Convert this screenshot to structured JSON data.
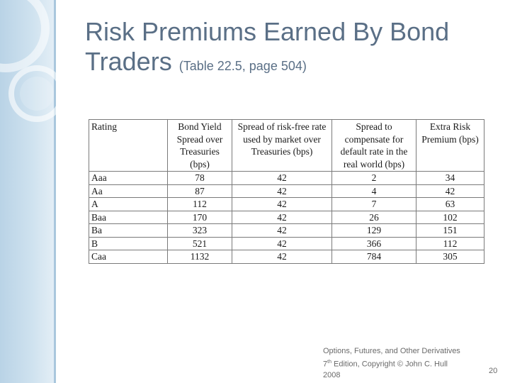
{
  "title": {
    "main_line1": "Risk Premiums Earned By Bond",
    "main_line2": "Traders",
    "subtitle": "(Table 22.5, page 504)"
  },
  "table": {
    "headers": [
      "Rating",
      "Bond Yield Spread over Treasuries (bps)",
      "Spread of risk-free rate used by market over Treasuries (bps)",
      "Spread to compensate for default rate in the real world (bps)",
      "Extra Risk Premium (bps)"
    ],
    "rows": [
      [
        "Aaa",
        "78",
        "42",
        "2",
        "34"
      ],
      [
        "Aa",
        "87",
        "42",
        "4",
        "42"
      ],
      [
        "A",
        "112",
        "42",
        "7",
        "63"
      ],
      [
        "Baa",
        "170",
        "42",
        "26",
        "102"
      ],
      [
        "Ba",
        "323",
        "42",
        "129",
        "151"
      ],
      [
        "B",
        "521",
        "42",
        "366",
        "112"
      ],
      [
        "Caa",
        "1132",
        "42",
        "784",
        "305"
      ]
    ]
  },
  "footer": {
    "line1": "Options, Futures, and Other Derivatives",
    "edition_num": "7",
    "edition_sup": "th",
    "line2_rest": " Edition, Copyright © John C. Hull",
    "line3": "2008",
    "page_number": "20"
  },
  "colors": {
    "title": "#5a6f86",
    "side_band": "#cfe2ef",
    "footer_text": "#6a6a6a"
  }
}
